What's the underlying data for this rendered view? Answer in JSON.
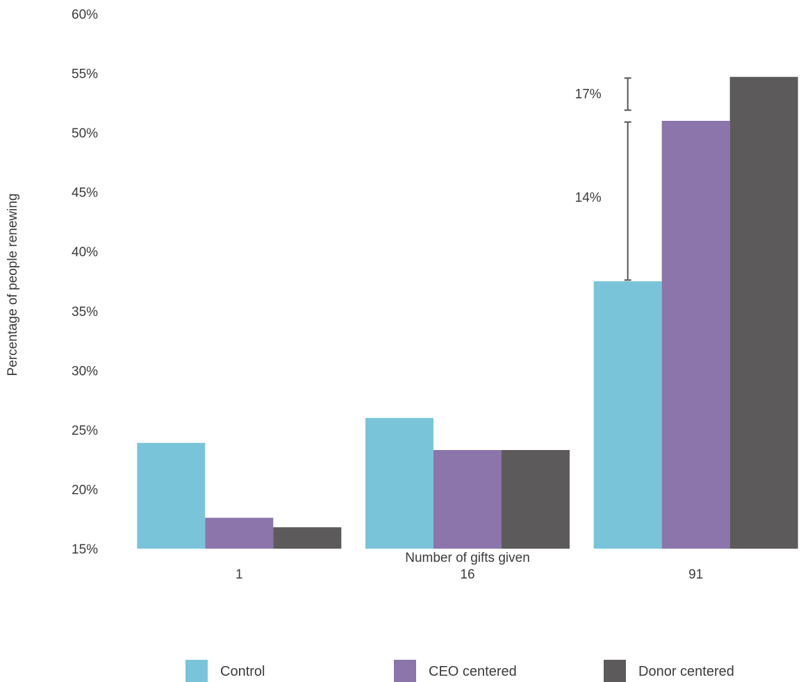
{
  "chart_data": {
    "type": "bar",
    "title": "",
    "xlabel": "Number of gifts given",
    "ylabel": "Percentage of people renewing",
    "categories": [
      "1",
      "16",
      "91"
    ],
    "series": [
      {
        "name": "Control",
        "color": "#7ac4da",
        "values": [
          23.9,
          26.0,
          37.5
        ]
      },
      {
        "name": "CEO centered",
        "color": "#8b75ab",
        "values": [
          17.6,
          23.3,
          51.0
        ]
      },
      {
        "name": "Donor centered",
        "color": "#5c5a5b",
        "values": [
          16.8,
          23.3,
          54.7
        ]
      }
    ],
    "ylim": [
      15,
      60
    ],
    "yticks": [
      15,
      20,
      25,
      30,
      35,
      40,
      45,
      50,
      55,
      60
    ],
    "ytick_labels": [
      "15%",
      "20%",
      "25%",
      "30%",
      "35%",
      "40%",
      "45%",
      "50%",
      "55%",
      "60%"
    ],
    "grid": false,
    "legend_position": "bottom",
    "annotations": [
      {
        "label": "14%",
        "category": "91",
        "from": 37.6,
        "to": 50.9,
        "label_at": 44.6
      },
      {
        "label": "17%",
        "category": "91",
        "from": 51.9,
        "to": 54.6,
        "label_at": 53.3
      }
    ]
  }
}
